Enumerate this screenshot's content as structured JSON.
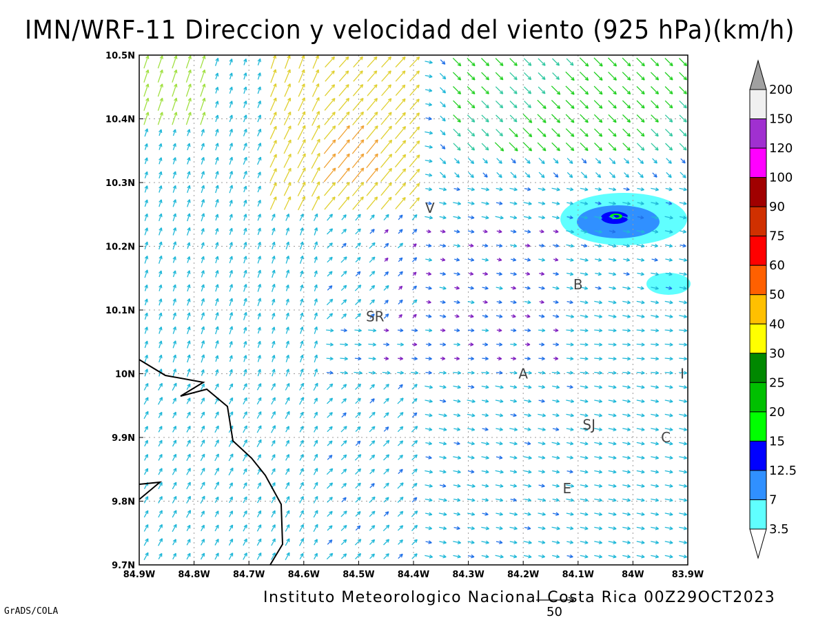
{
  "title": "IMN/WRF-11 Direccion y velocidad del viento (925 hPa)(km/h)",
  "footer": {
    "source": "Instituto Meteorologico Nacional Costa Rica 00Z29OCT2023",
    "credit": "GrADS/COLA",
    "reference_vector": "50"
  },
  "map": {
    "lon_range": [
      -84.9,
      -83.9
    ],
    "lat_range": [
      9.7,
      10.5
    ],
    "x_ticks": [
      "84.9W",
      "84.8W",
      "84.7W",
      "84.6W",
      "84.5W",
      "84.4W",
      "84.3W",
      "84.2W",
      "84.1W",
      "84W",
      "83.9W"
    ],
    "y_ticks": [
      "10.5N",
      "10.4N",
      "10.3N",
      "10.2N",
      "10.1N",
      "10N",
      "9.9N",
      "9.8N",
      "9.7N"
    ],
    "places": [
      {
        "label": "V",
        "lon": -84.37,
        "lat": 10.26
      },
      {
        "label": "B",
        "lon": -84.1,
        "lat": 10.14
      },
      {
        "label": "SR",
        "lon": -84.47,
        "lat": 10.09
      },
      {
        "label": "A",
        "lon": -84.2,
        "lat": 10.0
      },
      {
        "label": "I",
        "lon": -83.91,
        "lat": 10.0
      },
      {
        "label": "SJ",
        "lon": -84.08,
        "lat": 9.92
      },
      {
        "label": "C",
        "lon": -83.94,
        "lat": 9.9
      },
      {
        "label": "E",
        "lon": -84.12,
        "lat": 9.82
      }
    ]
  },
  "colorbar": {
    "labels": [
      "200",
      "150",
      "120",
      "100",
      "90",
      "75",
      "60",
      "50",
      "40",
      "30",
      "25",
      "20",
      "15",
      "12.5",
      "7",
      "3.5"
    ],
    "colors": [
      "#a0a0a0",
      "#f0f0f0",
      "#a030d0",
      "#ff00ff",
      "#a00000",
      "#d03000",
      "#ff0000",
      "#ff6000",
      "#ffc000",
      "#ffff00",
      "#008800",
      "#00c000",
      "#00ff00",
      "#0000ff",
      "#3090ff",
      "#60ffff"
    ]
  }
}
